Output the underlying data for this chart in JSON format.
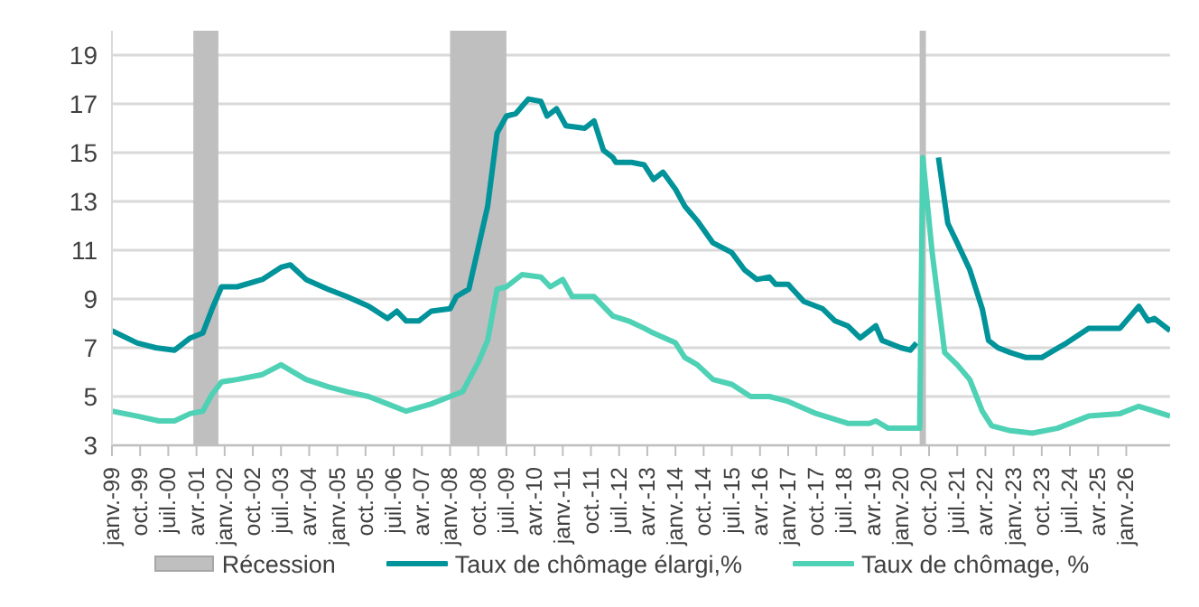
{
  "chart_data": {
    "type": "line",
    "series": [
      {
        "name": "Taux de chômage élargi,%",
        "color": "#00939a",
        "x": [
          "1999-01",
          "1999-09",
          "2000-03",
          "2000-09",
          "2001-02",
          "2001-06",
          "2001-09",
          "2001-12",
          "2002-05",
          "2003-01",
          "2003-07",
          "2003-10",
          "2004-03",
          "2004-10",
          "2005-04",
          "2005-11",
          "2006-05",
          "2006-08",
          "2006-11",
          "2007-03",
          "2007-07",
          "2008-01",
          "2008-03",
          "2008-07",
          "2008-10",
          "2009-01",
          "2009-04",
          "2009-07",
          "2009-10",
          "2010-02",
          "2010-06",
          "2010-08",
          "2010-11",
          "2011-02",
          "2011-08",
          "2011-11",
          "2012-02",
          "2012-05",
          "2012-06",
          "2012-11",
          "2013-03",
          "2013-06",
          "2013-09",
          "2014-01",
          "2014-04",
          "2014-08",
          "2015-01",
          "2015-07",
          "2015-11",
          "2016-03",
          "2016-07",
          "2016-09",
          "2017-01",
          "2017-06",
          "2017-12",
          "2018-04",
          "2018-08",
          "2018-12",
          "2019-03",
          "2019-05",
          "2019-07",
          "2020-01",
          "2020-04",
          "2020-06",
          "2020-08",
          "2020-09",
          "2021-01",
          "2021-04",
          "2021-07",
          "2021-11",
          "2022-03",
          "2022-05",
          "2022-08",
          "2022-12",
          "2023-05",
          "2023-10",
          "2024-02",
          "2024-06",
          "2025-01",
          "2025-07",
          "2025-11",
          "2026-05",
          "2026-08",
          "2026-10",
          "2027-03"
        ],
        "values": [
          7.7,
          7.2,
          7.0,
          6.9,
          7.4,
          7.6,
          8.6,
          9.5,
          9.5,
          9.8,
          10.3,
          10.4,
          9.8,
          9.4,
          9.1,
          8.7,
          8.2,
          8.5,
          8.1,
          8.1,
          8.5,
          8.6,
          9.1,
          9.4,
          11.1,
          12.8,
          15.8,
          16.5,
          16.6,
          17.2,
          17.1,
          16.5,
          16.8,
          16.1,
          16.0,
          16.3,
          15.1,
          14.8,
          14.6,
          14.6,
          14.5,
          13.9,
          14.2,
          13.5,
          12.8,
          12.2,
          11.3,
          10.9,
          10.2,
          9.8,
          9.9,
          9.6,
          9.6,
          8.9,
          8.6,
          8.1,
          7.9,
          7.4,
          7.7,
          7.9,
          7.3,
          7.0,
          6.9,
          7.2,
          null,
          null,
          14.8,
          12.1,
          11.3,
          10.2,
          8.6,
          7.3,
          7.0,
          6.8,
          6.6,
          6.6,
          6.9,
          7.2,
          7.8,
          7.8,
          7.8,
          8.7,
          8.1,
          8.2,
          7.7
        ]
      },
      {
        "name": "Taux de chômage, %",
        "color": "#4fd1b5",
        "x": [
          "1999-01",
          "1999-09",
          "2000-04",
          "2000-09",
          "2001-02",
          "2001-06",
          "2001-09",
          "2001-12",
          "2002-05",
          "2003-01",
          "2003-07",
          "2004-03",
          "2004-10",
          "2005-04",
          "2005-11",
          "2006-05",
          "2006-11",
          "2007-07",
          "2008-01",
          "2008-05",
          "2008-10",
          "2009-01",
          "2009-04",
          "2009-07",
          "2009-12",
          "2010-06",
          "2010-09",
          "2011-01",
          "2011-04",
          "2011-11",
          "2012-05",
          "2012-10",
          "2013-03",
          "2013-06",
          "2014-01",
          "2014-04",
          "2014-08",
          "2015-01",
          "2015-07",
          "2016-01",
          "2016-07",
          "2017-01",
          "2017-10",
          "2018-08",
          "2019-03",
          "2019-05",
          "2019-09",
          "2020-05",
          "2020-07",
          "2020-08",
          "2020-11",
          "2021-03",
          "2021-07",
          "2021-11",
          "2022-03",
          "2022-06",
          "2022-12",
          "2023-07",
          "2024-03",
          "2025-01",
          "2025-11",
          "2026-05",
          "2027-03"
        ],
        "values": [
          4.4,
          4.2,
          4.0,
          4.0,
          4.3,
          4.4,
          5.1,
          5.6,
          5.7,
          5.9,
          6.3,
          5.7,
          5.4,
          5.2,
          5.0,
          4.7,
          4.4,
          4.7,
          5.0,
          5.2,
          6.4,
          7.3,
          9.4,
          9.5,
          10.0,
          9.9,
          9.5,
          9.8,
          9.1,
          9.1,
          8.3,
          8.1,
          7.8,
          7.6,
          7.2,
          6.6,
          6.3,
          5.7,
          5.5,
          5.0,
          5.0,
          4.8,
          4.3,
          3.9,
          3.9,
          4.0,
          3.7,
          3.7,
          3.7,
          14.8,
          10.9,
          6.8,
          6.3,
          5.7,
          4.4,
          3.8,
          3.6,
          3.5,
          3.7,
          4.2,
          4.3,
          4.6,
          4.2
        ]
      }
    ],
    "xlim": [
      "1999-01",
      "2027-03"
    ],
    "xticks": [
      {
        "value": "1999-01",
        "label": "janv.-99"
      },
      {
        "value": "1999-10",
        "label": "oct.-99"
      },
      {
        "value": "2000-07",
        "label": "juil.-00"
      },
      {
        "value": "2001-04",
        "label": "avr.-01"
      },
      {
        "value": "2002-01",
        "label": "janv.-02"
      },
      {
        "value": "2002-10",
        "label": "oct.-02"
      },
      {
        "value": "2003-07",
        "label": "juil.-03"
      },
      {
        "value": "2004-04",
        "label": "avr.-04"
      },
      {
        "value": "2005-01",
        "label": "janv.-05"
      },
      {
        "value": "2005-10",
        "label": "oct.-05"
      },
      {
        "value": "2006-07",
        "label": "juil.-06"
      },
      {
        "value": "2007-04",
        "label": "avr.-07"
      },
      {
        "value": "2008-01",
        "label": "janv.-08"
      },
      {
        "value": "2008-10",
        "label": "oct.-08"
      },
      {
        "value": "2009-07",
        "label": "juil.-09"
      },
      {
        "value": "2010-04",
        "label": "avr.-10"
      },
      {
        "value": "2011-01",
        "label": "janv.-11"
      },
      {
        "value": "2011-10",
        "label": "oct.-11"
      },
      {
        "value": "2012-07",
        "label": "juil.-12"
      },
      {
        "value": "2013-04",
        "label": "avr.-13"
      },
      {
        "value": "2014-01",
        "label": "janv.-14"
      },
      {
        "value": "2014-10",
        "label": "oct.-14"
      },
      {
        "value": "2015-07",
        "label": "juil.-15"
      },
      {
        "value": "2016-04",
        "label": "avr.-16"
      },
      {
        "value": "2017-01",
        "label": "janv.-17"
      },
      {
        "value": "2017-10",
        "label": "oct.-17"
      },
      {
        "value": "2018-07",
        "label": "juil.-18"
      },
      {
        "value": "2019-04",
        "label": "avr.-19"
      },
      {
        "value": "2020-01",
        "label": "janv.-20"
      },
      {
        "value": "2020-10",
        "label": "oct.-20"
      },
      {
        "value": "2021-07",
        "label": "juil.-21"
      },
      {
        "value": "2022-04",
        "label": "avr.-22"
      },
      {
        "value": "2023-01",
        "label": "janv.-23"
      },
      {
        "value": "2023-10",
        "label": "oct.-23"
      },
      {
        "value": "2024-07",
        "label": "juil.-24"
      },
      {
        "value": "2025-04",
        "label": "avr.-25"
      },
      {
        "value": "2026-01",
        "label": "janv.-26"
      }
    ],
    "ylim": [
      3,
      20
    ],
    "yticks": [
      3,
      5,
      7,
      9,
      11,
      13,
      15,
      17,
      19
    ],
    "bands": [
      {
        "axis": "x",
        "from": "2001-03",
        "to": "2001-11",
        "label": "Récession",
        "color": "#bfbfbf"
      },
      {
        "axis": "x",
        "from": "2008-01",
        "to": "2009-07",
        "color": "#bfbfbf"
      },
      {
        "axis": "x",
        "from": "2020-07",
        "to": "2020-09",
        "color": "#bfbfbf"
      }
    ],
    "grid": "y",
    "legend": "bottom",
    "marker": "none",
    "line_style": "solid"
  }
}
